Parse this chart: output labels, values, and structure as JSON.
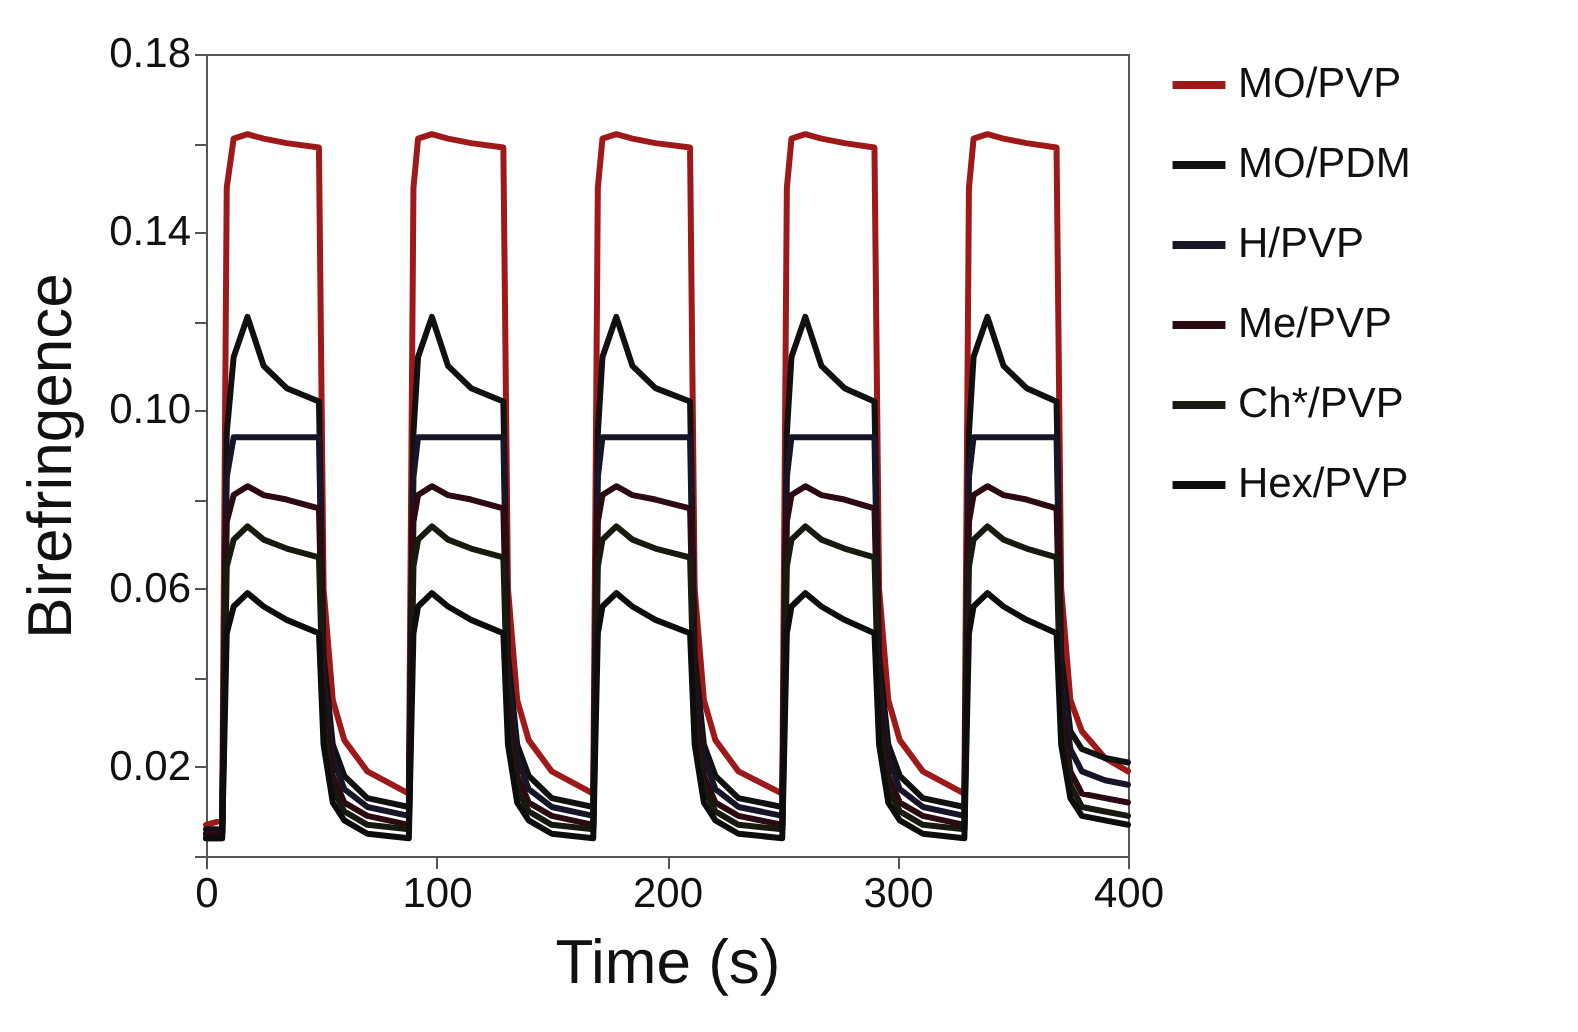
{
  "chart_data": {
    "type": "line",
    "xlabel": "Time (s)",
    "ylabel": "Birefringence",
    "xlim": [
      0,
      400
    ],
    "xticks": [
      0,
      100,
      200,
      300,
      400
    ],
    "ylim": [
      0,
      0.18
    ],
    "yticks": [
      {
        "value": 0,
        "label": null
      },
      0.02,
      {
        "value": 0.04,
        "label": null
      },
      0.06,
      {
        "value": 0.08,
        "label": null
      },
      {
        "value": 0.1,
        "label": "0.10"
      },
      {
        "value": 0.12,
        "label": null
      },
      0.14,
      {
        "value": 0.16,
        "label": null
      },
      0.18
    ],
    "grid": false,
    "legend": "right",
    "line_style": "solid",
    "x": [
      0,
      7,
      9,
      12,
      18,
      25,
      35,
      49,
      51,
      55,
      60,
      70,
      88,
      90,
      92,
      98,
      105,
      115,
      129,
      131,
      135,
      140,
      150,
      168,
      170,
      172,
      178,
      185,
      195,
      210,
      212,
      216,
      221,
      231,
      250,
      252,
      254,
      260,
      267,
      277,
      290,
      292,
      296,
      301,
      311,
      329,
      331,
      333,
      339,
      346,
      356,
      369,
      371,
      375,
      380,
      390,
      400
    ],
    "series": [
      {
        "name": "MO/PVP",
        "color": "#9e1a1a",
        "values": [
          0.007,
          0.008,
          0.15,
          0.161,
          0.162,
          0.161,
          0.16,
          0.159,
          0.06,
          0.035,
          0.026,
          0.019,
          0.014,
          0.15,
          0.161,
          0.162,
          0.161,
          0.16,
          0.159,
          0.06,
          0.035,
          0.026,
          0.019,
          0.014,
          0.15,
          0.161,
          0.162,
          0.161,
          0.16,
          0.159,
          0.06,
          0.035,
          0.026,
          0.019,
          0.014,
          0.15,
          0.161,
          0.162,
          0.161,
          0.16,
          0.159,
          0.06,
          0.035,
          0.026,
          0.019,
          0.014,
          0.15,
          0.161,
          0.162,
          0.161,
          0.16,
          0.159,
          0.06,
          0.035,
          0.028,
          0.022,
          0.019
        ]
      },
      {
        "name": "MO/PDM",
        "color": "#111111",
        "values": [
          0.006,
          0.006,
          0.095,
          0.112,
          0.121,
          0.11,
          0.105,
          0.102,
          0.045,
          0.025,
          0.018,
          0.013,
          0.011,
          0.095,
          0.112,
          0.121,
          0.11,
          0.105,
          0.102,
          0.045,
          0.025,
          0.018,
          0.013,
          0.011,
          0.095,
          0.112,
          0.121,
          0.11,
          0.105,
          0.102,
          0.045,
          0.025,
          0.018,
          0.013,
          0.011,
          0.095,
          0.112,
          0.121,
          0.11,
          0.105,
          0.102,
          0.045,
          0.025,
          0.018,
          0.013,
          0.011,
          0.095,
          0.112,
          0.121,
          0.11,
          0.105,
          0.102,
          0.045,
          0.028,
          0.024,
          0.022,
          0.021
        ]
      },
      {
        "name": "H/PVP",
        "color": "#161628",
        "values": [
          0.005,
          0.005,
          0.085,
          0.094,
          0.094,
          0.094,
          0.094,
          0.094,
          0.04,
          0.022,
          0.015,
          0.011,
          0.009,
          0.085,
          0.094,
          0.094,
          0.094,
          0.094,
          0.094,
          0.04,
          0.022,
          0.015,
          0.011,
          0.009,
          0.085,
          0.094,
          0.094,
          0.094,
          0.094,
          0.094,
          0.04,
          0.022,
          0.015,
          0.011,
          0.009,
          0.085,
          0.094,
          0.094,
          0.094,
          0.094,
          0.094,
          0.04,
          0.022,
          0.015,
          0.011,
          0.009,
          0.085,
          0.094,
          0.094,
          0.094,
          0.094,
          0.094,
          0.04,
          0.024,
          0.019,
          0.017,
          0.016
        ]
      },
      {
        "name": "Me/PVP",
        "color": "#2b0a12",
        "values": [
          0.005,
          0.005,
          0.075,
          0.081,
          0.083,
          0.081,
          0.08,
          0.078,
          0.035,
          0.018,
          0.012,
          0.009,
          0.007,
          0.075,
          0.081,
          0.083,
          0.081,
          0.08,
          0.078,
          0.035,
          0.018,
          0.012,
          0.009,
          0.007,
          0.075,
          0.081,
          0.083,
          0.081,
          0.08,
          0.078,
          0.035,
          0.018,
          0.012,
          0.009,
          0.007,
          0.075,
          0.081,
          0.083,
          0.081,
          0.08,
          0.078,
          0.035,
          0.018,
          0.012,
          0.009,
          0.007,
          0.075,
          0.081,
          0.083,
          0.081,
          0.08,
          0.078,
          0.035,
          0.019,
          0.014,
          0.013,
          0.012
        ]
      },
      {
        "name": "Ch*/PVP",
        "color": "#181a10",
        "values": [
          0.004,
          0.004,
          0.065,
          0.071,
          0.074,
          0.071,
          0.069,
          0.067,
          0.03,
          0.015,
          0.01,
          0.007,
          0.006,
          0.065,
          0.071,
          0.074,
          0.071,
          0.069,
          0.067,
          0.03,
          0.015,
          0.01,
          0.007,
          0.006,
          0.065,
          0.071,
          0.074,
          0.071,
          0.069,
          0.067,
          0.03,
          0.015,
          0.01,
          0.007,
          0.006,
          0.065,
          0.071,
          0.074,
          0.071,
          0.069,
          0.067,
          0.03,
          0.015,
          0.01,
          0.007,
          0.006,
          0.065,
          0.071,
          0.074,
          0.071,
          0.069,
          0.067,
          0.03,
          0.016,
          0.011,
          0.01,
          0.009
        ]
      },
      {
        "name": "Hex/PVP",
        "color": "#0d0d0d",
        "values": [
          0.004,
          0.004,
          0.05,
          0.056,
          0.059,
          0.056,
          0.053,
          0.05,
          0.025,
          0.012,
          0.008,
          0.005,
          0.004,
          0.05,
          0.056,
          0.059,
          0.056,
          0.053,
          0.05,
          0.025,
          0.012,
          0.008,
          0.005,
          0.004,
          0.05,
          0.056,
          0.059,
          0.056,
          0.053,
          0.05,
          0.025,
          0.012,
          0.008,
          0.005,
          0.004,
          0.05,
          0.056,
          0.059,
          0.056,
          0.053,
          0.05,
          0.025,
          0.012,
          0.008,
          0.005,
          0.004,
          0.05,
          0.056,
          0.059,
          0.056,
          0.053,
          0.05,
          0.025,
          0.013,
          0.009,
          0.008,
          0.007
        ]
      }
    ]
  }
}
